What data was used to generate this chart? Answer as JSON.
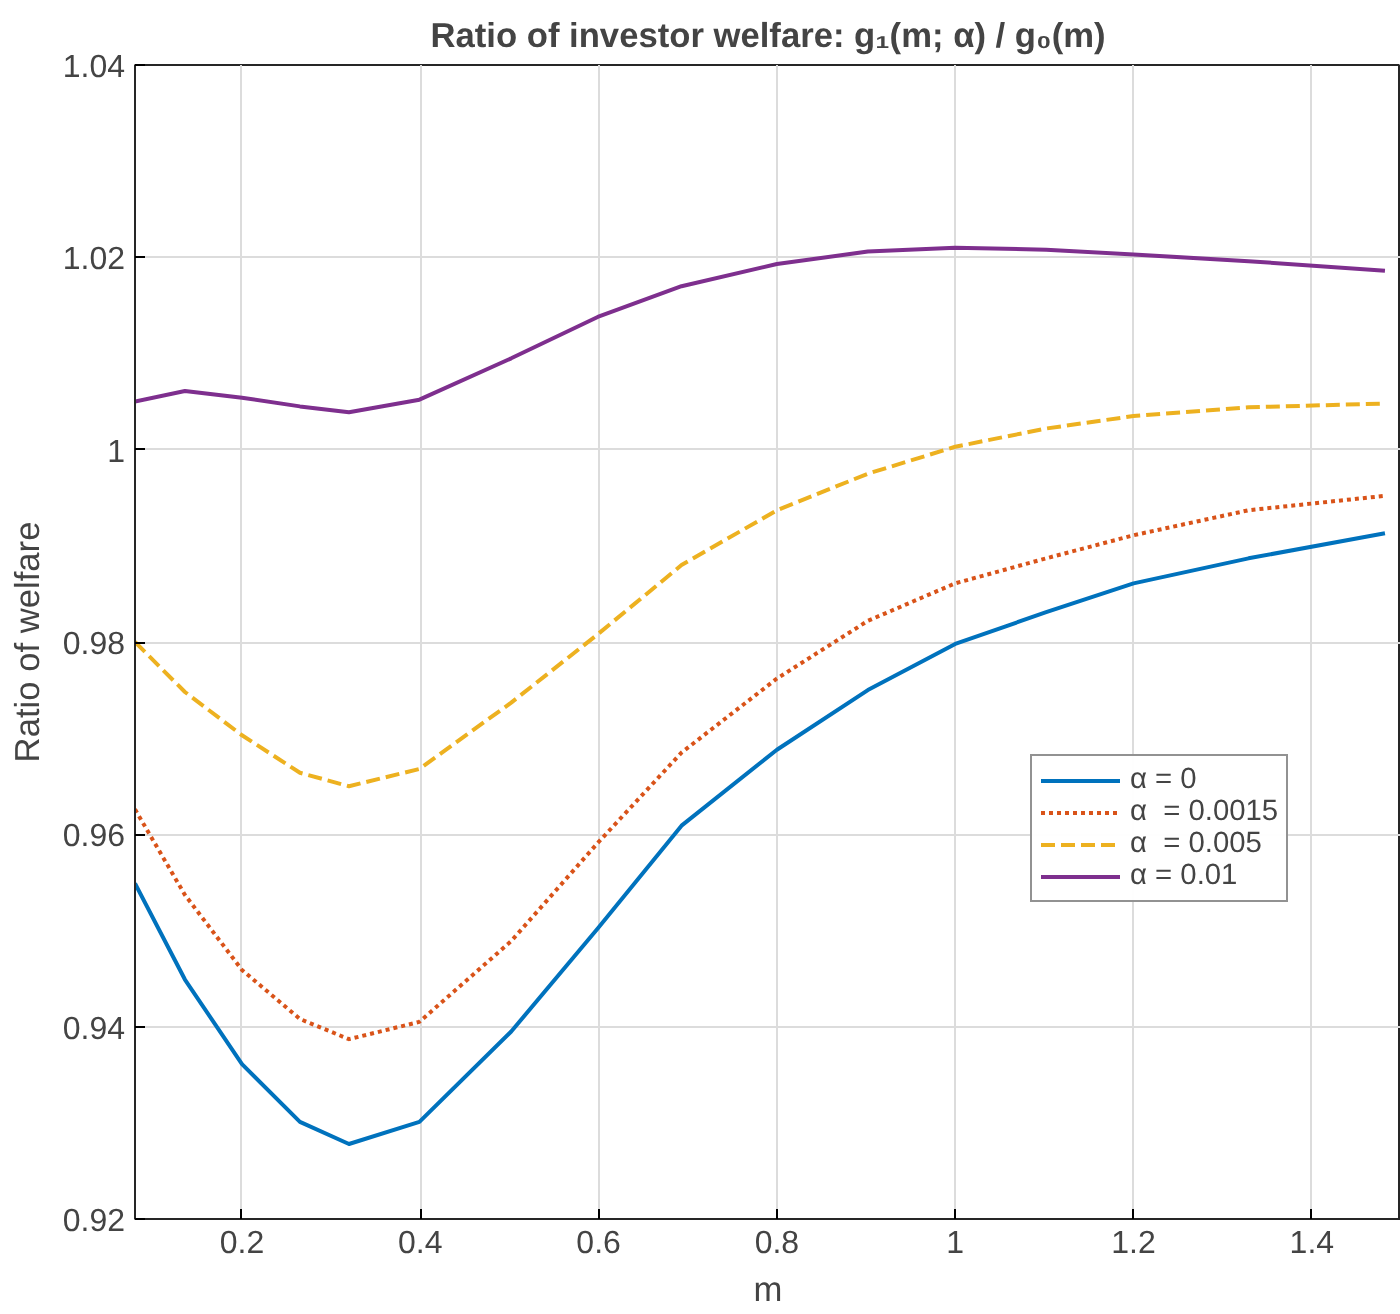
{
  "chart_data": {
    "type": "line",
    "title": "Ratio of investor welfare: g₁(m; α) / g₀(m)",
    "xlabel": "m",
    "ylabel": "Ratio of welfare",
    "x": [
      0.08,
      0.136,
      0.2,
      0.265,
      0.32,
      0.399,
      0.502,
      0.599,
      0.693,
      0.8,
      0.902,
      1.0,
      1.102,
      1.2,
      1.329,
      1.482
    ],
    "series": [
      {
        "name": "α = 0",
        "color": "#0072bd",
        "line_style": "solid",
        "values": [
          0.9549,
          0.9449,
          0.9361,
          0.9301,
          0.9278,
          0.9301,
          0.9395,
          0.9502,
          0.9609,
          0.9688,
          0.975,
          0.9798,
          0.9831,
          0.9861,
          0.9887,
          0.9913
        ]
      },
      {
        "name": "α  = 0.0015",
        "color": "#d95319",
        "line_style": "dotted",
        "values": [
          0.9626,
          0.9537,
          0.9459,
          0.9408,
          0.9387,
          0.9405,
          0.9489,
          0.9591,
          0.9685,
          0.9762,
          0.9822,
          0.9861,
          0.9887,
          0.9911,
          0.9937,
          0.9952
        ]
      },
      {
        "name": "α  = 0.005",
        "color": "#edb120",
        "line_style": "dashed",
        "values": [
          0.98,
          0.9748,
          0.9703,
          0.9664,
          0.965,
          0.9668,
          0.9737,
          0.9808,
          0.988,
          0.9937,
          0.9975,
          1.0003,
          1.0022,
          1.0035,
          1.0044,
          1.0048
        ]
      },
      {
        "name": "α = 0.01",
        "color": "#7e2f8e",
        "line_style": "solid",
        "values": [
          1.005,
          1.0061,
          1.0054,
          1.0045,
          1.0039,
          1.0052,
          1.0095,
          1.0138,
          1.017,
          1.0193,
          1.0206,
          1.021,
          1.0208,
          1.0203,
          1.0196,
          1.0186
        ]
      }
    ],
    "xlim": [
      0.08,
      1.5
    ],
    "xticks": [
      0.2,
      0.4,
      0.6,
      0.8,
      1,
      1.2,
      1.4
    ],
    "ylim": [
      0.92,
      1.04
    ],
    "yticks": [
      0.92,
      0.94,
      0.96,
      0.98,
      1,
      1.02,
      1.04
    ],
    "grid": true,
    "legend": "center right"
  }
}
